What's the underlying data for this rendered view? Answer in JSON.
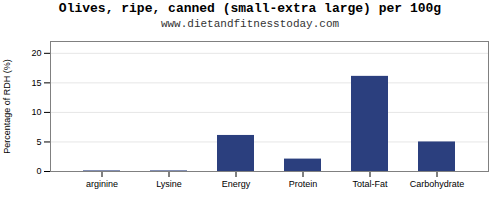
{
  "chart_data": {
    "type": "bar",
    "title": "Olives, ripe, canned (small-extra large) per 100g",
    "subtitle": "www.dietandfitnesstoday.com",
    "categories": [
      "arginine",
      "Lysine",
      "Energy",
      "Protein",
      "Total-Fat",
      "Carbohydrate"
    ],
    "values": [
      0.1,
      0.1,
      6.1,
      2.1,
      16.1,
      5.0
    ],
    "color": "#2b3f7e",
    "ylabel": "Percentage of RDH (%)",
    "ylim": [
      0,
      22
    ],
    "yticks": [
      0,
      5,
      10,
      15,
      20
    ],
    "grid": true
  }
}
